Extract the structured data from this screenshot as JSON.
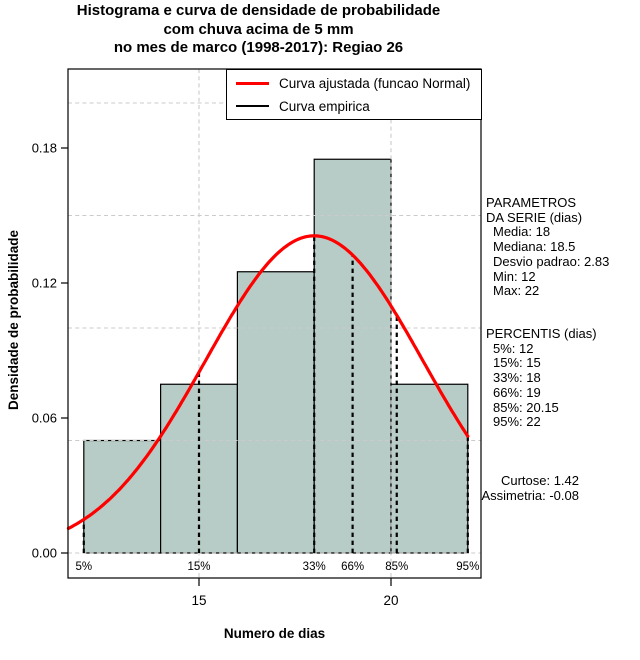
{
  "title": {
    "line1": "Histograma e curva de densidade de probabilidade",
    "line2": "com chuva acima de 5 mm",
    "line3": "no mes de marco (1998-2017): Regiao 26"
  },
  "legend": {
    "items": [
      {
        "label": "Curva ajustada (funcao Normal)",
        "color": "#ff0000"
      },
      {
        "label": "Curva empirica",
        "color": "#000000"
      }
    ]
  },
  "axes": {
    "x_label": "Numero de dias",
    "y_label": "Densidade de probabilidade"
  },
  "annotations": {
    "parametros": {
      "line1": "PARAMETROS",
      "line2": "DA SERIE (dias)",
      "items": [
        "Media: 18",
        "Mediana: 18.5",
        "Desvio padrao: 2.83",
        "Min: 12",
        "Max: 22"
      ]
    },
    "percentis": {
      "title": "PERCENTIS (dias)",
      "items": [
        "5%: 12",
        "15%: 15",
        "33%: 18",
        "66%: 19",
        "85%: 20.15",
        "95%: 22"
      ]
    },
    "moments": [
      "Curtose: 1.42",
      "Assimetria: -0.08"
    ]
  },
  "chart_data": {
    "type": "bar",
    "subtype": "histogram-with-density-curve",
    "title": "Histograma e curva de densidade de probabilidade com chuva acima de 5 mm no mes de marco (1998-2017): Regiao 26",
    "xlabel": "Numero de dias",
    "ylabel": "Densidade de probabilidade",
    "xlim": [
      11.6,
      22.34
    ],
    "ylim": [
      -0.011,
      0.215
    ],
    "x_ticks": [
      15,
      20
    ],
    "x_tick_labels": [
      "15",
      "20"
    ],
    "y_ticks": [
      0,
      0.06,
      0.12,
      0.18
    ],
    "y_tick_labels": [
      "0.00",
      "0.06",
      "0.12",
      "0.18"
    ],
    "grid": {
      "color": "#cbcbcb",
      "y_values": [
        0,
        0.05,
        0.1,
        0.15,
        0.2
      ],
      "x_values": [
        15,
        20
      ]
    },
    "histogram": {
      "breaks": [
        12,
        14,
        16,
        18,
        20,
        22
      ],
      "densities": [
        0.05,
        0.075,
        0.125,
        0.175,
        0.075
      ],
      "fill": "#b7ccc6",
      "border": "#000000"
    },
    "normal_curve": {
      "mean": 18,
      "sd": 2.83,
      "color": "#ff0000",
      "x_start": 11.6,
      "x_end": 22
    },
    "percentile_lines": [
      {
        "label": "5%",
        "x": 12
      },
      {
        "label": "15%",
        "x": 15
      },
      {
        "label": "33%",
        "x": 18
      },
      {
        "label": "66%",
        "x": 19
      },
      {
        "label": "85%",
        "x": 20.15
      },
      {
        "label": "95%",
        "x": 22
      }
    ]
  }
}
